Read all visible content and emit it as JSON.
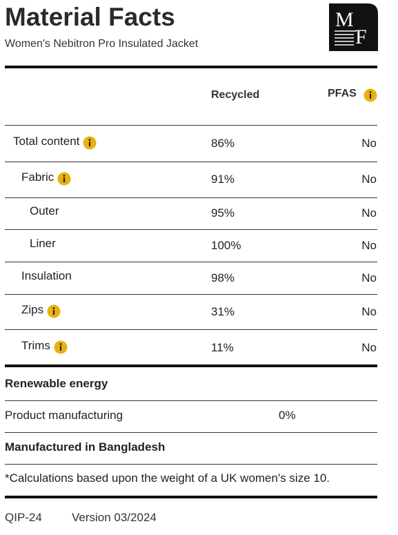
{
  "header": {
    "title": "Material Facts",
    "subtitle": "Women's Nebitron Pro Insulated Jacket",
    "logo": [
      "M",
      "F"
    ]
  },
  "table": {
    "columns": [
      "Recycled",
      "PFAS"
    ],
    "pfas_info": true,
    "rows": [
      {
        "label": "Total content",
        "level": 0,
        "info": true,
        "recycled": "86%",
        "pfas": "No"
      },
      {
        "label": "Fabric",
        "level": 1,
        "info": true,
        "recycled": "91%",
        "pfas": "No"
      },
      {
        "label": "Outer",
        "level": 2,
        "info": false,
        "recycled": "95%",
        "pfas": "No"
      },
      {
        "label": "Liner",
        "level": 2,
        "info": false,
        "recycled": "100%",
        "pfas": "No"
      },
      {
        "label": "Insulation",
        "level": 1,
        "info": false,
        "recycled": "98%",
        "pfas": "No"
      },
      {
        "label": "Zips",
        "level": 1,
        "info": true,
        "recycled": "31%",
        "pfas": "No"
      },
      {
        "label": "Trims",
        "level": 1,
        "info": true,
        "recycled": "11%",
        "pfas": "No"
      }
    ]
  },
  "energy": {
    "title": "Renewable energy",
    "rows": [
      {
        "label": "Product manufacturing",
        "value": "0%"
      }
    ]
  },
  "origin": "Manufactured in Bangladesh",
  "footnote": "*Calculations based upon the weight of a UK women's size 10.",
  "footer": [
    "QIP-24",
    "Version 03/2024"
  ]
}
